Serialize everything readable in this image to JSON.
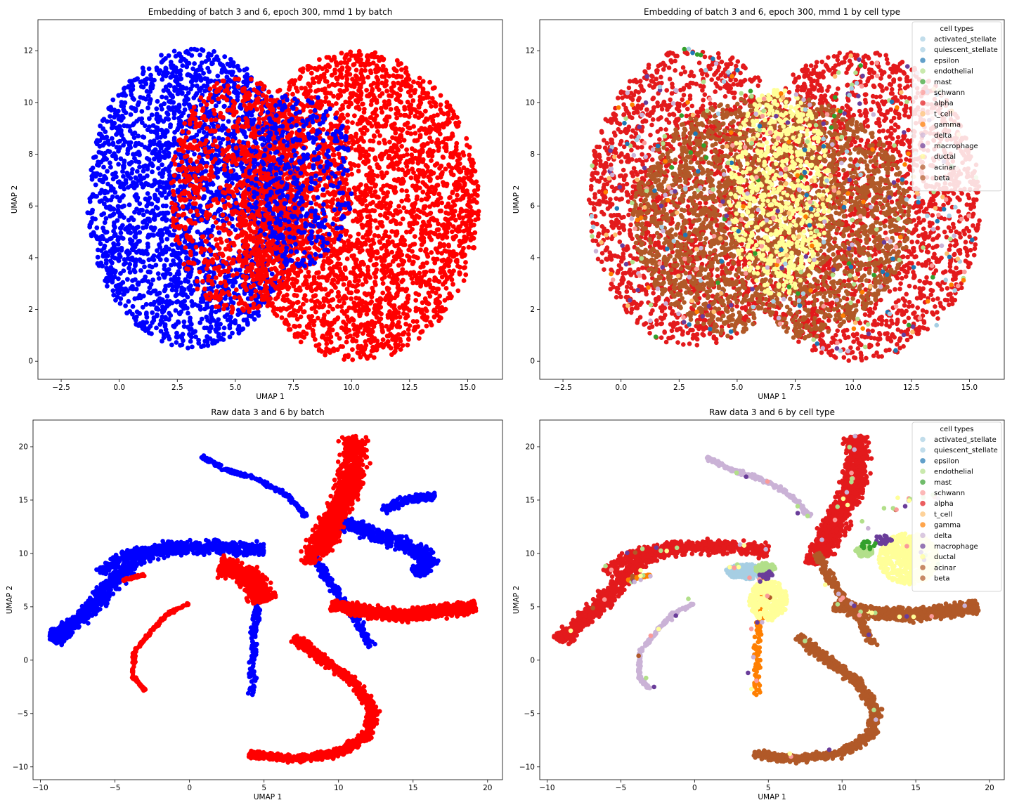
{
  "chart_data": [
    {
      "type": "scatter",
      "title": "Embedding of batch 3 and 6, epoch 300, mmd 1 by batch",
      "xlabel": "UMAP 1",
      "ylabel": "UMAP 2",
      "xlim": [
        -3.5,
        16.5
      ],
      "ylim": [
        -0.7,
        13.2
      ],
      "xticks": [
        -2.5,
        0.0,
        2.5,
        5.0,
        7.5,
        10.0,
        12.5,
        15.0
      ],
      "xtick_labels": [
        "−2.5",
        "0.0",
        "2.5",
        "5.0",
        "7.5",
        "10.0",
        "12.5",
        "15.0"
      ],
      "yticks": [
        0,
        2,
        4,
        6,
        8,
        10,
        12
      ],
      "ytick_labels": [
        "0",
        "2",
        "4",
        "6",
        "8",
        "10",
        "12"
      ],
      "grid": false,
      "series": [
        {
          "color": "#0000ff",
          "regions": [
            {
              "shape": "disc",
              "cx": 3.2,
              "cy": 6.3,
              "rx": 4.6,
              "ry": 5.8
            },
            {
              "shape": "disc",
              "cx": 7.6,
              "cy": 7.5,
              "rx": 2.6,
              "ry": 3.6
            }
          ]
        },
        {
          "color": "#ff0000",
          "regions": [
            {
              "shape": "disc",
              "cx": 10.2,
              "cy": 6.0,
              "rx": 5.3,
              "ry": 6.0
            },
            {
              "shape": "disc",
              "cx": 5.0,
              "cy": 6.2,
              "rx": 3.0,
              "ry": 4.5
            }
          ]
        }
      ]
    },
    {
      "type": "scatter",
      "title": "Embedding of batch 3 and 6, epoch 300, mmd 1 by cell type",
      "xlabel": "UMAP 1",
      "ylabel": "UMAP 2",
      "xlim": [
        -3.5,
        16.5
      ],
      "ylim": [
        -0.7,
        13.2
      ],
      "xticks": [
        -2.5,
        0.0,
        2.5,
        5.0,
        7.5,
        10.0,
        12.5,
        15.0
      ],
      "xtick_labels": [
        "−2.5",
        "0.0",
        "2.5",
        "5.0",
        "7.5",
        "10.0",
        "12.5",
        "15.0"
      ],
      "yticks": [
        0,
        2,
        4,
        6,
        8,
        10,
        12
      ],
      "ytick_labels": [
        "0",
        "2",
        "4",
        "6",
        "8",
        "10",
        "12"
      ],
      "grid": false,
      "legend": {
        "title": "cell types",
        "placement": "upper right",
        "entries": [
          {
            "label": "activated_stellate",
            "color": "#a6cee3"
          },
          {
            "label": "quiescent_stellate",
            "color": "#a6cee3"
          },
          {
            "label": "epsilon",
            "color": "#1f78b4"
          },
          {
            "label": "endothelial",
            "color": "#b2df8a"
          },
          {
            "label": "mast",
            "color": "#33a02c"
          },
          {
            "label": "schwann",
            "color": "#fb9a99"
          },
          {
            "label": "alpha",
            "color": "#e31a1c"
          },
          {
            "label": "t_cell",
            "color": "#fdbf6f"
          },
          {
            "label": "gamma",
            "color": "#ff7f00"
          },
          {
            "label": "delta",
            "color": "#cab2d6"
          },
          {
            "label": "macrophage",
            "color": "#6a3d9a"
          },
          {
            "label": "ductal",
            "color": "#ffff99"
          },
          {
            "label": "acinar",
            "color": "#b15928"
          },
          {
            "label": "beta",
            "color": "#b15928"
          }
        ]
      }
    },
    {
      "type": "scatter",
      "title": "Raw data 3 and 6 by batch",
      "xlabel": "UMAP 1",
      "ylabel": "UMAP 2",
      "xlim": [
        -10.5,
        21.0
      ],
      "ylim": [
        -11.2,
        22.5
      ],
      "xticks": [
        -10,
        -5,
        0,
        5,
        10,
        15,
        20
      ],
      "xtick_labels": [
        "−10",
        "−5",
        "0",
        "5",
        "10",
        "15",
        "20"
      ],
      "yticks": [
        -10,
        -5,
        0,
        5,
        10,
        15,
        20
      ],
      "ytick_labels": [
        "−10",
        "−5",
        "0",
        "5",
        "10",
        "15",
        "20"
      ],
      "grid": false
    },
    {
      "type": "scatter",
      "title": "Raw data 3 and 6 by cell type",
      "xlabel": "UMAP 1",
      "ylabel": "UMAP 2",
      "xlim": [
        -10.5,
        21.0
      ],
      "ylim": [
        -11.2,
        22.5
      ],
      "xticks": [
        -10,
        -5,
        0,
        5,
        10,
        15,
        20
      ],
      "xtick_labels": [
        "−10",
        "−5",
        "0",
        "5",
        "10",
        "15",
        "20"
      ],
      "yticks": [
        -10,
        -5,
        0,
        5,
        10,
        15,
        20
      ],
      "ytick_labels": [
        "−10",
        "−5",
        "0",
        "5",
        "10",
        "15",
        "20"
      ],
      "grid": false,
      "legend": {
        "title": "cell types",
        "placement": "upper right",
        "entries": [
          {
            "label": "activated_stellate",
            "color": "#a6cee3"
          },
          {
            "label": "quiescent_stellate",
            "color": "#a6cee3"
          },
          {
            "label": "epsilon",
            "color": "#1f78b4"
          },
          {
            "label": "endothelial",
            "color": "#b2df8a"
          },
          {
            "label": "mast",
            "color": "#33a02c"
          },
          {
            "label": "schwann",
            "color": "#fb9a99"
          },
          {
            "label": "alpha",
            "color": "#e31a1c"
          },
          {
            "label": "t_cell",
            "color": "#fdbf6f"
          },
          {
            "label": "gamma",
            "color": "#ff7f00"
          },
          {
            "label": "delta",
            "color": "#cab2d6"
          },
          {
            "label": "macrophage",
            "color": "#6a3d9a"
          },
          {
            "label": "ductal",
            "color": "#ffff99"
          },
          {
            "label": "acinar",
            "color": "#b15928"
          },
          {
            "label": "beta",
            "color": "#b15928"
          }
        ]
      }
    }
  ]
}
